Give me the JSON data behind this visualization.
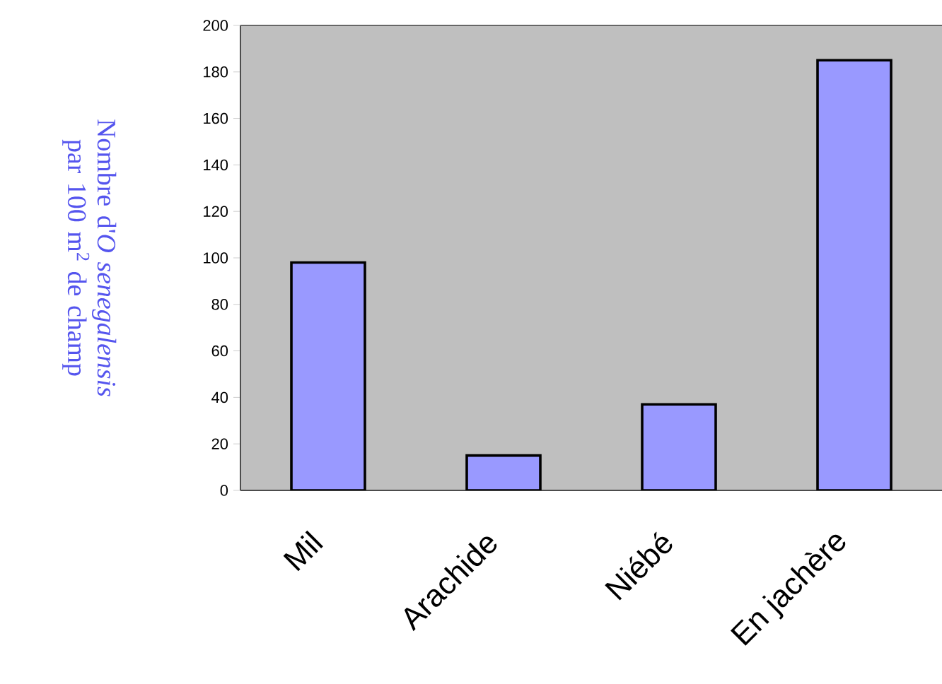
{
  "chart_data": {
    "type": "bar",
    "ylabel": "Nombre d'*O senegalensis* par 100 m$^{2}$ de champ",
    "categories": [
      "Mil",
      "Arachide",
      "Niébé",
      "En jachère"
    ],
    "values": [
      98,
      15,
      37,
      185
    ],
    "color": "#9999ff",
    "ylim": [
      0,
      200
    ],
    "yticks": [
      0,
      20,
      40,
      60,
      80,
      100,
      120,
      140,
      160,
      180,
      200
    ]
  }
}
